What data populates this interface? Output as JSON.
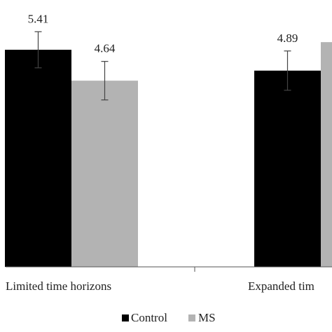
{
  "chart_data": {
    "type": "bar",
    "categories": [
      "Limited time horizons",
      "Expanded time horizons"
    ],
    "category_labels_visible": [
      "Limited time horizons",
      "Expanded tim"
    ],
    "series": [
      {
        "name": "Control",
        "color": "#000000",
        "values": [
          5.41,
          4.89
        ],
        "error": [
          0.45,
          0.49
        ],
        "labels": [
          "5.41",
          "4.89"
        ]
      },
      {
        "name": "MS",
        "color": "#b3b3b3",
        "values": [
          4.64,
          5.6
        ],
        "error": [
          0.48,
          null
        ],
        "labels": [
          "4.64",
          null
        ]
      }
    ],
    "ylim": [
      0,
      6.65
    ],
    "grid": false,
    "legend_position": "bottom-center"
  }
}
